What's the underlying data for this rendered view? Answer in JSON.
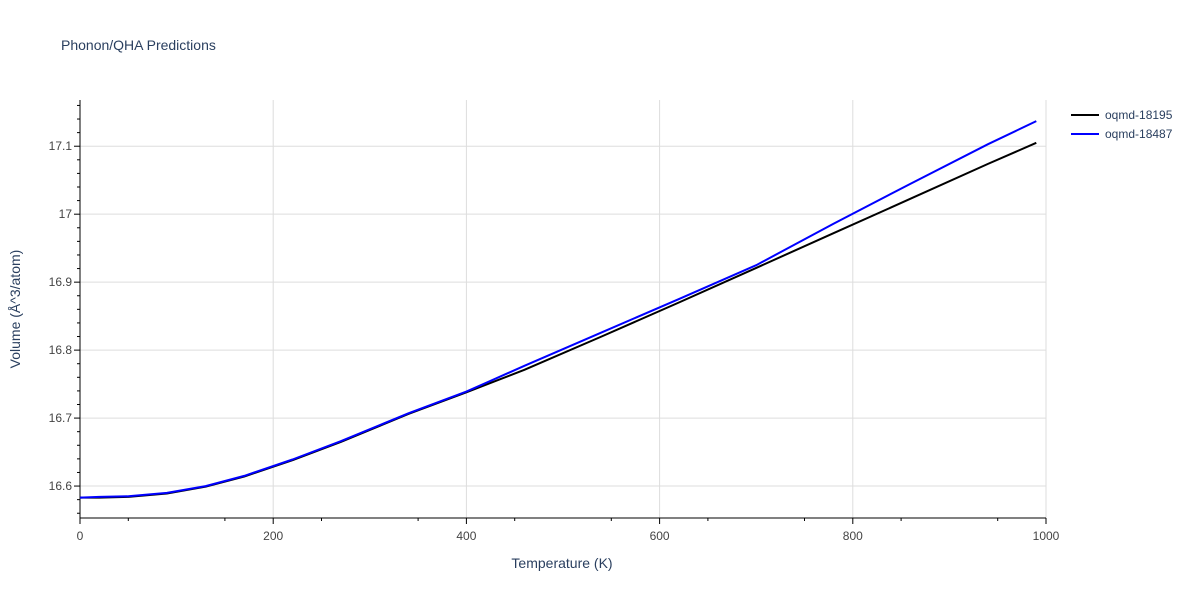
{
  "colors": {
    "background": "#ffffff",
    "grid": "#dddddd",
    "axis": "#000000",
    "text": "#2a3f5f",
    "tick_label": "#444444"
  },
  "chart_data": {
    "type": "line",
    "title": "Phonon/QHA Predictions",
    "xlabel": "Temperature (K)",
    "ylabel": "Volume (Å^3/atom)",
    "xlim": [
      0,
      1000
    ],
    "ylim": [
      16.553,
      17.168
    ],
    "x_ticks": [
      0,
      200,
      400,
      600,
      800,
      1000
    ],
    "y_ticks": [
      16.6,
      16.7,
      16.8,
      16.9,
      17,
      17.1
    ],
    "x_tick_labels": [
      "0",
      "200",
      "400",
      "600",
      "800",
      "1000"
    ],
    "y_tick_labels": [
      "16.6",
      "16.7",
      "16.8",
      "16.9",
      "17",
      "17.1"
    ],
    "grid": true,
    "legend_position": "top-right",
    "series": [
      {
        "name": "oqmd-18195",
        "color": "#000000",
        "x": [
          0,
          20,
          50,
          90,
          130,
          170,
          220,
          270,
          340,
          400,
          460,
          540,
          620,
          700,
          780,
          860,
          940,
          990
        ],
        "y": [
          16.583,
          16.583,
          16.584,
          16.589,
          16.599,
          16.614,
          16.638,
          16.665,
          16.706,
          16.738,
          16.771,
          16.82,
          16.87,
          16.921,
          16.972,
          17.023,
          17.074,
          17.105
        ]
      },
      {
        "name": "oqmd-18487",
        "color": "#0000ff",
        "x": [
          0,
          20,
          50,
          90,
          130,
          170,
          220,
          270,
          340,
          400,
          460,
          540,
          620,
          700,
          780,
          860,
          940,
          990
        ],
        "y": [
          16.583,
          16.584,
          16.585,
          16.59,
          16.6,
          16.615,
          16.639,
          16.666,
          16.707,
          16.739,
          16.777,
          16.826,
          16.875,
          16.925,
          16.986,
          17.045,
          17.103,
          17.137
        ]
      }
    ]
  }
}
